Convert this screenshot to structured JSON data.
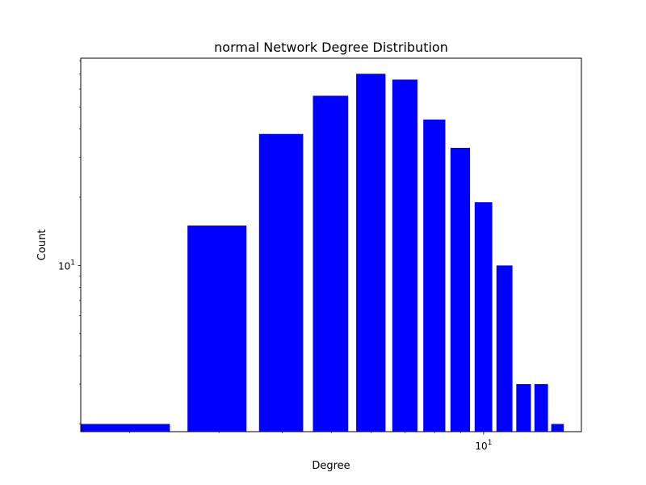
{
  "chart_data": {
    "type": "bar",
    "title": "normal Network Degree Distribution",
    "xlabel": "Degree",
    "ylabel": "Count",
    "x_scale": "log",
    "y_scale": "log",
    "xlim": [
      1.6,
      15.6
    ],
    "ylim": [
      1.85,
      82
    ],
    "grid": false,
    "color": "#0000ff",
    "x_ticks": [
      {
        "value": 10,
        "base": "10",
        "exp": "1"
      }
    ],
    "y_ticks": [
      {
        "value": 10,
        "base": "10",
        "exp": "1"
      }
    ],
    "bars": [
      {
        "x": 2,
        "y": 2
      },
      {
        "x": 3,
        "y": 15
      },
      {
        "x": 4,
        "y": 38
      },
      {
        "x": 5,
        "y": 56
      },
      {
        "x": 6,
        "y": 70
      },
      {
        "x": 7,
        "y": 66
      },
      {
        "x": 8,
        "y": 44
      },
      {
        "x": 9,
        "y": 33
      },
      {
        "x": 10,
        "y": 19
      },
      {
        "x": 11,
        "y": 10
      },
      {
        "x": 12,
        "y": 3
      },
      {
        "x": 13,
        "y": 3
      },
      {
        "x": 14,
        "y": 2
      }
    ]
  }
}
